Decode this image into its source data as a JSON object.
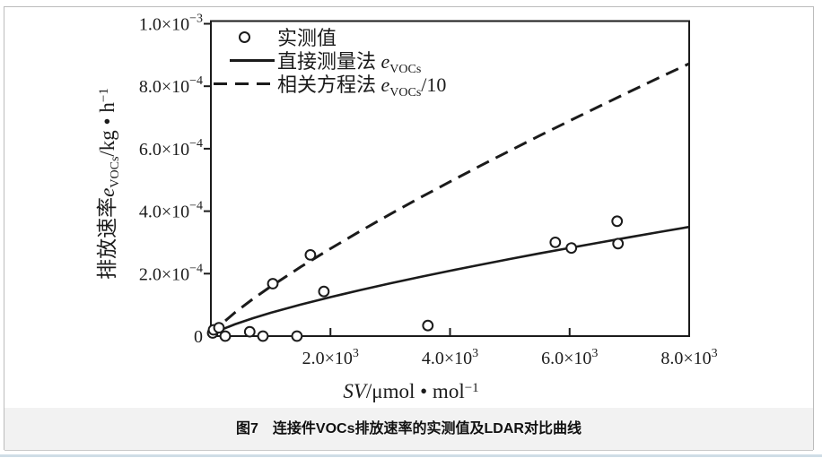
{
  "page": {
    "ink": "#1b1b1b",
    "background": "#ffffff",
    "caption_band_bg": "#f2f2f2",
    "border_color": "#bcbcbc",
    "bottom_rule_color": "#cfdde6"
  },
  "figure_caption": "图7　连接件VOCs排放速率的实测值及LDAR对比曲线",
  "chart_data": {
    "type": "scatter",
    "grid": false,
    "legend_position": "top-left-inside",
    "x_axis": {
      "min": 0,
      "max": 8000,
      "zero_label": "0",
      "title": {
        "sym": "SV",
        "unit": "/μmol • mol",
        "sup": "−1"
      },
      "ticks": [
        {
          "label_base": "2.0×10",
          "label_exp": "3",
          "value": 2000
        },
        {
          "label_base": "4.0×10",
          "label_exp": "3",
          "value": 4000
        },
        {
          "label_base": "6.0×10",
          "label_exp": "3",
          "value": 6000
        },
        {
          "label_base": "8.0×10",
          "label_exp": "3",
          "value": 8000
        }
      ]
    },
    "y_axis": {
      "min": 0,
      "max": 0.001,
      "zero_label": "0",
      "title": {
        "cn": "排放速率",
        "sym": "e",
        "sub": "VOCs",
        "unit": "/kg • h",
        "sup": "−1"
      },
      "ticks": [
        {
          "label_base": "2.0×10",
          "label_exp": "−4",
          "value": 0.0002
        },
        {
          "label_base": "4.0×10",
          "label_exp": "−4",
          "value": 0.0004
        },
        {
          "label_base": "6.0×10",
          "label_exp": "−4",
          "value": 0.0006
        },
        {
          "label_base": "8.0×10",
          "label_exp": "−4",
          "value": 0.0008
        },
        {
          "label_base": "1.0×10",
          "label_exp": "−3",
          "value": 0.001
        }
      ]
    },
    "legend": [
      {
        "marker": "circle",
        "text_pre": "实测值",
        "text_sym": "",
        "text_sub": "",
        "text_suf": ""
      },
      {
        "marker": "solid",
        "text_pre": "直接测量法 ",
        "text_sym": "e",
        "text_sub": "VOCs",
        "text_suf": ""
      },
      {
        "marker": "dashed",
        "text_pre": "相关方程法 ",
        "text_sym": "e",
        "text_sub": "VOCs",
        "text_suf": "/10"
      }
    ],
    "series": [
      {
        "name": "实测值",
        "type": "scatter",
        "points": [
          [
            30,
            1e-05
          ],
          [
            45,
            2e-05
          ],
          [
            135,
            2.7e-05
          ],
          [
            240,
            0
          ],
          [
            650,
            1.4e-05
          ],
          [
            870,
            0
          ],
          [
            1035,
            0.000168
          ],
          [
            1440,
            0
          ],
          [
            1665,
            0.00026
          ],
          [
            1890,
            0.000143
          ],
          [
            3630,
            3.4e-05
          ],
          [
            5760,
            0.0003
          ],
          [
            6030,
            0.000282
          ],
          [
            6795,
            0.000368
          ],
          [
            6810,
            0.000296
          ]
        ]
      },
      {
        "name": "直接测量法 eVOCs",
        "type": "line",
        "style": "solid",
        "points": [
          [
            0,
            0
          ],
          [
            100,
            1.34e-05
          ],
          [
            200,
            2.25e-05
          ],
          [
            400,
            3.76e-05
          ],
          [
            700,
            5.72e-05
          ],
          [
            1000,
            7.45e-05
          ],
          [
            1500,
            0.0001008
          ],
          [
            2000,
            0.0001249
          ],
          [
            2500,
            0.0001475
          ],
          [
            3000,
            0.0001689
          ],
          [
            3500,
            0.0001894
          ],
          [
            4000,
            0.0002091
          ],
          [
            4500,
            0.0002282
          ],
          [
            5000,
            0.0002467
          ],
          [
            5500,
            0.0002648
          ],
          [
            6000,
            0.0002824
          ],
          [
            6500,
            0.0002996
          ],
          [
            7000,
            0.0003165
          ],
          [
            7500,
            0.0003331
          ],
          [
            8000,
            0.0003494
          ]
        ]
      },
      {
        "name": "相关方程法 eVOCs/10",
        "type": "line",
        "style": "dashed",
        "points": [
          [
            0,
            0
          ],
          [
            100,
            2.4e-05
          ],
          [
            200,
            4.23e-05
          ],
          [
            400,
            7.48e-05
          ],
          [
            700,
            0.0001185
          ],
          [
            1000,
            0.0001586
          ],
          [
            1500,
            0.0002211
          ],
          [
            2000,
            0.0002802
          ],
          [
            2500,
            0.0003363
          ],
          [
            3000,
            0.0003905
          ],
          [
            3500,
            0.0004433
          ],
          [
            4000,
            0.0004945
          ],
          [
            4500,
            0.0005445
          ],
          [
            5000,
            0.0005934
          ],
          [
            5500,
            0.0006419
          ],
          [
            6000,
            0.0006892
          ],
          [
            6500,
            0.0007359
          ],
          [
            7000,
            0.0007821
          ],
          [
            7500,
            0.0008278
          ],
          [
            8000,
            0.0008723
          ]
        ]
      }
    ]
  }
}
